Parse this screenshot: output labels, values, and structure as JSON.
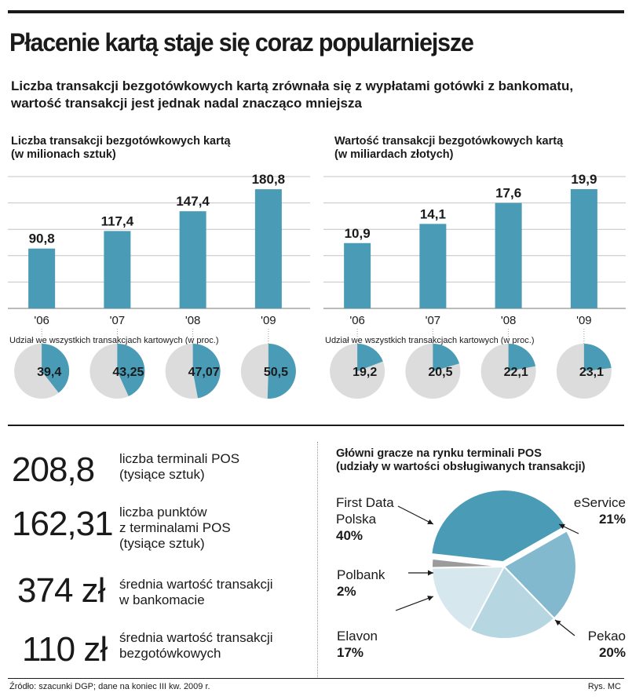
{
  "title": "Płacenie kartą staje się coraz popularniejsze",
  "subtitle": "Liczba transakcji bezgotówkowych kartą zrównała się z wypłatami gotówki z bankomatu, wartość transakcji jest jednak nadal znacząco mniejsza",
  "colors": {
    "accent": "#4a9bb5",
    "pie_grey": "#dcdcdc",
    "text": "#1a1a1a"
  },
  "chart_data": [
    {
      "type": "bar",
      "title": "Liczba transakcji bezgotówkowych kartą",
      "subtitle": "(w milionach sztuk)",
      "categories": [
        "'06",
        "'07",
        "'08",
        "'09"
      ],
      "values": [
        90.8,
        117.4,
        147.4,
        180.8
      ],
      "value_labels": [
        "90,8",
        "117,4",
        "147,4",
        "180,8"
      ],
      "ylim": [
        0,
        200
      ],
      "grid": true,
      "share_caption": "Udział we wszystkich transakcjach kartowych (w proc.)",
      "shares": [
        39.4,
        43.25,
        47.07,
        50.5
      ],
      "share_labels": [
        "39,4",
        "43,25",
        "47,07",
        "50,5"
      ]
    },
    {
      "type": "bar",
      "title": "Wartość transakcji bezgotówkowych kartą",
      "subtitle": "(w miliardach złotych)",
      "categories": [
        "'06",
        "'07",
        "'08",
        "'09"
      ],
      "values": [
        10.9,
        14.1,
        17.6,
        19.9
      ],
      "value_labels": [
        "10,9",
        "14,1",
        "17,6",
        "19,9"
      ],
      "ylim": [
        0,
        22
      ],
      "grid": true,
      "share_caption": "Udział we wszystkich transakcjach kartowych (w proc.)",
      "shares": [
        19.2,
        20.5,
        22.1,
        23.1
      ],
      "share_labels": [
        "19,2",
        "20,5",
        "22,1",
        "23,1"
      ]
    },
    {
      "type": "pie",
      "title": "Główni gracze na rynku terminali POS",
      "subtitle": "(udziały w wartości obsługiwanych transakcji)",
      "slices": [
        {
          "name_lines": [
            "First Data",
            "Polska"
          ],
          "value": 40,
          "label": "40%",
          "color": "#4a9bb5"
        },
        {
          "name_lines": [
            "eService"
          ],
          "value": 21,
          "label": "21%",
          "color": "#82b9cf"
        },
        {
          "name_lines": [
            "Pekao"
          ],
          "value": 20,
          "label": "20%",
          "color": "#b6d6e2"
        },
        {
          "name_lines": [
            "Elavon"
          ],
          "value": 17,
          "label": "17%",
          "color": "#d6e7ee"
        },
        {
          "name_lines": [
            "Polbank"
          ],
          "value": 2,
          "label": "2%",
          "color": "#9b9b9b"
        }
      ]
    }
  ],
  "stats": [
    {
      "value": "208,8",
      "lines": [
        "liczba terminali POS",
        "(tysiące sztuk)"
      ]
    },
    {
      "value": "162,31",
      "lines": [
        "liczba punktów",
        "z terminalami POS",
        "(tysiące sztuk)"
      ]
    },
    {
      "value": "374 zł",
      "lines": [
        "średnia wartość transakcji",
        "w bankomacie"
      ]
    },
    {
      "value": "110 zł",
      "lines": [
        "średnia wartość transakcji",
        "bezgotówkowych"
      ]
    }
  ],
  "source": "Źródło: szacunki DGP; dane na koniec III kw. 2009 r.",
  "credit": "Rys. MC"
}
